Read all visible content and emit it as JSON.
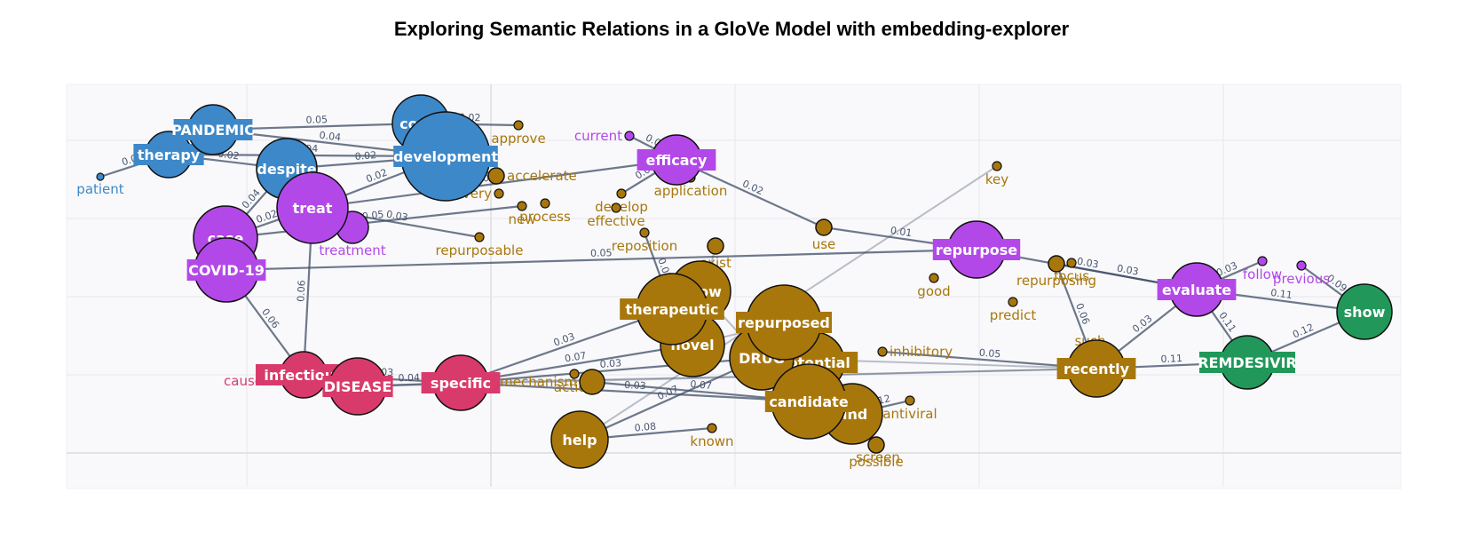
{
  "title": "Exploring Semantic Relations in a GloVe Model with embedding-explorer",
  "colors": {
    "blue": "#3d88c9",
    "purple": "#b348e8",
    "gold": "#a8770c",
    "red": "#d93a6c",
    "green": "#21985a",
    "edge": "#3e4c66"
  },
  "nodes": [
    {
      "id": "pandemic",
      "label": "PANDEMIC",
      "group": "blue",
      "size": "big",
      "box": true
    },
    {
      "id": "therapy",
      "label": "therapy",
      "group": "blue",
      "size": "big",
      "box": true
    },
    {
      "id": "patient",
      "label": "patient",
      "group": "blue",
      "size": "small"
    },
    {
      "id": "despite",
      "label": "despite",
      "group": "blue",
      "size": "big"
    },
    {
      "id": "covid",
      "label": "covid",
      "group": "blue",
      "size": "big"
    },
    {
      "id": "development",
      "label": "development",
      "group": "blue",
      "size": "big",
      "box": true
    },
    {
      "id": "treat",
      "label": "treat",
      "group": "purple",
      "size": "big"
    },
    {
      "id": "treatment",
      "label": "treatment",
      "group": "purple",
      "size": "small"
    },
    {
      "id": "case",
      "label": "case",
      "group": "purple",
      "size": "big"
    },
    {
      "id": "covid19",
      "label": "COVID-19",
      "group": "purple",
      "size": "big",
      "box": true
    },
    {
      "id": "current",
      "label": "current",
      "group": "purple",
      "size": "small"
    },
    {
      "id": "efficacy",
      "label": "efficacy",
      "group": "purple",
      "size": "big",
      "box": true
    },
    {
      "id": "repurpose",
      "label": "repurpose",
      "group": "purple",
      "size": "big",
      "box": true
    },
    {
      "id": "evaluate",
      "label": "evaluate",
      "group": "purple",
      "size": "big",
      "box": true
    },
    {
      "id": "follow",
      "label": "follow",
      "group": "purple",
      "size": "small"
    },
    {
      "id": "previous",
      "label": "previous",
      "group": "purple",
      "size": "small"
    },
    {
      "id": "show",
      "label": "show",
      "group": "green",
      "size": "big"
    },
    {
      "id": "remdesivir",
      "label": "REMDESIVIR",
      "group": "green",
      "size": "big",
      "box": true
    },
    {
      "id": "approve",
      "label": "approve",
      "group": "gold",
      "size": "small"
    },
    {
      "id": "accelerate",
      "label": "accelerate",
      "group": "gold",
      "size": "small"
    },
    {
      "id": "discovery",
      "label": "discovery",
      "group": "gold",
      "size": "small"
    },
    {
      "id": "new",
      "label": "new",
      "group": "gold",
      "size": "small"
    },
    {
      "id": "process",
      "label": "process",
      "group": "gold",
      "size": "small"
    },
    {
      "id": "develop",
      "label": "develop",
      "group": "gold",
      "size": "small"
    },
    {
      "id": "effective",
      "label": "effective",
      "group": "gold",
      "size": "small"
    },
    {
      "id": "application",
      "label": "application",
      "group": "gold",
      "size": "small"
    },
    {
      "id": "repurposable",
      "label": "repurposable",
      "group": "gold",
      "size": "small"
    },
    {
      "id": "reposition",
      "label": "reposition",
      "group": "gold",
      "size": "small"
    },
    {
      "id": "exist",
      "label": "exist",
      "group": "gold",
      "size": "small"
    },
    {
      "id": "use",
      "label": "use",
      "group": "gold",
      "size": "small"
    },
    {
      "id": "key",
      "label": "key",
      "group": "gold",
      "size": "small"
    },
    {
      "id": "good",
      "label": "good",
      "group": "gold",
      "size": "small"
    },
    {
      "id": "repurposing",
      "label": "repurposing",
      "group": "gold",
      "size": "small"
    },
    {
      "id": "focus",
      "label": "focus",
      "group": "gold",
      "size": "small"
    },
    {
      "id": "predict",
      "label": "predict",
      "group": "gold",
      "size": "small"
    },
    {
      "id": "know",
      "label": "know",
      "group": "gold",
      "size": "big"
    },
    {
      "id": "therapeutic",
      "label": "therapeutic",
      "group": "gold",
      "size": "big",
      "box": true
    },
    {
      "id": "repurposed",
      "label": "repurposed",
      "group": "gold",
      "size": "big",
      "box": true
    },
    {
      "id": "novel",
      "label": "novel",
      "group": "gold",
      "size": "big"
    },
    {
      "id": "drug",
      "label": "DRUG",
      "group": "gold",
      "size": "big"
    },
    {
      "id": "potential",
      "label": "potential",
      "group": "gold",
      "size": "big",
      "box": true
    },
    {
      "id": "candidate",
      "label": "candidate",
      "group": "gold",
      "size": "big",
      "box": true
    },
    {
      "id": "find",
      "label": "find",
      "group": "gold",
      "size": "big"
    },
    {
      "id": "inhibitory",
      "label": "inhibitory",
      "group": "gold",
      "size": "small"
    },
    {
      "id": "antiviral",
      "label": "antiviral",
      "group": "gold",
      "size": "small"
    },
    {
      "id": "possible",
      "label": "possible",
      "group": "gold",
      "size": "small"
    },
    {
      "id": "screen",
      "label": "screen",
      "group": "gold",
      "size": "small"
    },
    {
      "id": "help",
      "label": "help",
      "group": "gold",
      "size": "big"
    },
    {
      "id": "known",
      "label": "known",
      "group": "gold",
      "size": "small"
    },
    {
      "id": "mechanism",
      "label": "mechanism",
      "group": "gold",
      "size": "small"
    },
    {
      "id": "action",
      "label": "action",
      "group": "gold",
      "size": "small"
    },
    {
      "id": "recently",
      "label": "recently",
      "group": "gold",
      "size": "big",
      "box": true
    },
    {
      "id": "such",
      "label": "such",
      "group": "gold",
      "size": "small"
    },
    {
      "id": "infectious",
      "label": "infectious",
      "group": "red",
      "size": "big",
      "box": true
    },
    {
      "id": "cause",
      "label": "cause",
      "group": "red",
      "size": "small"
    },
    {
      "id": "disease",
      "label": "DISEASE",
      "group": "red",
      "size": "big",
      "box": true
    },
    {
      "id": "specific",
      "label": "specific",
      "group": "red",
      "size": "big",
      "box": true
    }
  ],
  "edges": [
    {
      "s": "patient",
      "t": "therapy",
      "w": "0.03"
    },
    {
      "s": "pandemic",
      "t": "covid",
      "w": "0.05"
    },
    {
      "s": "pandemic",
      "t": "development",
      "w": "0.04"
    },
    {
      "s": "therapy",
      "t": "development",
      "w": "0.04"
    },
    {
      "s": "therapy",
      "t": "despite",
      "w": "0.02"
    },
    {
      "s": "despite",
      "t": "development",
      "w": "0.02"
    },
    {
      "s": "covid",
      "t": "approve",
      "w": "0.02"
    },
    {
      "s": "development",
      "t": "accelerate",
      "w": "0.02"
    },
    {
      "s": "treat",
      "t": "development",
      "w": "0.02"
    },
    {
      "s": "treat",
      "t": "despite",
      "w": "0.06"
    },
    {
      "s": "case",
      "t": "treat",
      "w": "0.02"
    },
    {
      "s": "case",
      "t": "despite",
      "w": "0.04"
    },
    {
      "s": "treat",
      "t": "efficacy",
      "w": "0.02"
    },
    {
      "s": "treat",
      "t": "repurposable",
      "w": "0.03"
    },
    {
      "s": "case",
      "t": "new",
      "w": "0.05"
    },
    {
      "s": "covid19",
      "t": "repurpose",
      "w": "0.05"
    },
    {
      "s": "covid19",
      "t": "infectious",
      "w": "0.06"
    },
    {
      "s": "treat",
      "t": "infectious",
      "w": "0.06"
    },
    {
      "s": "efficacy",
      "t": "current",
      "w": "0.02"
    },
    {
      "s": "efficacy",
      "t": "use",
      "w": "0.02"
    },
    {
      "s": "efficacy",
      "t": "develop",
      "w": "0.02"
    },
    {
      "s": "use",
      "t": "repurpose",
      "w": "0.01"
    },
    {
      "s": "repurpose",
      "t": "evaluate",
      "w": "0.03"
    },
    {
      "s": "repurposing",
      "t": "evaluate",
      "w": "0.03"
    },
    {
      "s": "recently",
      "t": "evaluate",
      "w": "0.03"
    },
    {
      "s": "repurposing",
      "t": "recently",
      "w": "0.06"
    },
    {
      "s": "evaluate",
      "t": "follow",
      "w": "0.03"
    },
    {
      "s": "evaluate",
      "t": "remdesivir",
      "w": "0.11"
    },
    {
      "s": "evaluate",
      "t": "show",
      "w": "0.11"
    },
    {
      "s": "previous",
      "t": "show",
      "w": "0.09"
    },
    {
      "s": "recently",
      "t": "remdesivir",
      "w": "0.11"
    },
    {
      "s": "remdesivir",
      "t": "show",
      "w": "0.12"
    },
    {
      "s": "disease",
      "t": "specific",
      "w": "0.04"
    },
    {
      "s": "infectious",
      "t": "specific",
      "w": "0.03"
    },
    {
      "s": "specific",
      "t": "therapeutic",
      "w": "0.03"
    },
    {
      "s": "specific",
      "t": "novel",
      "w": "0.07"
    },
    {
      "s": "specific",
      "t": "drug",
      "w": "0.03"
    },
    {
      "s": "specific",
      "t": "candidate",
      "w": "0.03"
    },
    {
      "s": "help",
      "t": "known",
      "w": "0.08"
    },
    {
      "s": "help",
      "t": "drug",
      "w": "0.07"
    },
    {
      "s": "mechanism",
      "t": "candidate",
      "w": "0.07"
    },
    {
      "s": "inhibitory",
      "t": "recently",
      "w": "0.05"
    },
    {
      "s": "find",
      "t": "antiviral",
      "w": "0.12"
    },
    {
      "s": "candidate",
      "t": "find",
      "w": "0.02"
    },
    {
      "s": "reposition",
      "t": "therapeutic",
      "w": "0.03"
    },
    {
      "s": "help",
      "t": "key",
      "w": ""
    },
    {
      "s": "disease",
      "t": "recently",
      "w": ""
    },
    {
      "s": "specific",
      "t": "recently",
      "w": ""
    },
    {
      "s": "drug",
      "t": "recently",
      "w": ""
    },
    {
      "s": "novel",
      "t": "repurposed",
      "w": ""
    },
    {
      "s": "know",
      "t": "drug",
      "w": ""
    },
    {
      "s": "exist",
      "t": "novel",
      "w": ""
    },
    {
      "s": "find",
      "t": "possible",
      "w": ""
    }
  ]
}
